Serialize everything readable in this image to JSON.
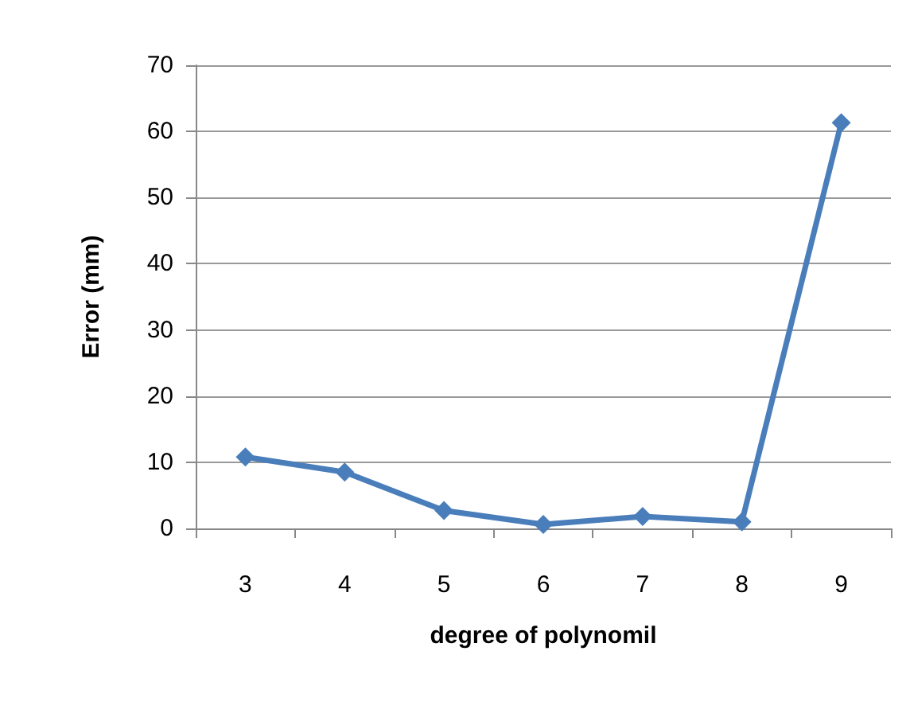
{
  "chart_data": {
    "type": "line",
    "xlabel": "degree of polynomil",
    "ylabel": "Error (mm)",
    "categories": [
      "3",
      "4",
      "5",
      "6",
      "7",
      "8",
      "9"
    ],
    "series": [
      {
        "color": "#4a7ebb",
        "values": [
          10.8,
          8.5,
          2.7,
          0.6,
          1.8,
          1.0,
          61.3
        ]
      }
    ],
    "ylim": [
      0,
      70
    ],
    "yticks": [
      0,
      10,
      20,
      30,
      40,
      50,
      60,
      70
    ],
    "grid": "y",
    "marker": "diamond",
    "line_style": "solid"
  }
}
